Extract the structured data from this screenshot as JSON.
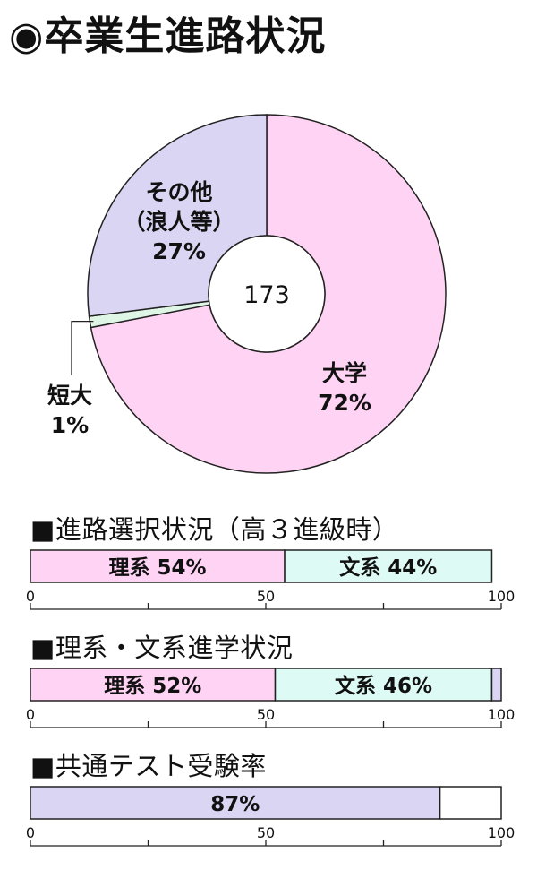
{
  "page": {
    "title": "◉卒業生進路状況"
  },
  "chart_data": [
    {
      "type": "pie",
      "center_label": "173",
      "slices": [
        {
          "label_lines": [
            "大学"
          ],
          "value": 72,
          "value_label": "72%",
          "color": "#ffd3f3"
        },
        {
          "label_lines": [
            "短大"
          ],
          "value": 1,
          "value_label": "1%",
          "color": "#dff5e5"
        },
        {
          "label_lines": [
            "その他",
            "（浪人等）"
          ],
          "value": 27,
          "value_label": "27%",
          "color": "#d9d5f2"
        }
      ]
    },
    {
      "type": "bar",
      "title": "■進路選択状況（高３進級時）",
      "orientation": "horizontal-stacked",
      "xlim": [
        0,
        100
      ],
      "ticks": [
        "0",
        "50",
        "100"
      ],
      "segments": [
        {
          "name": "理系",
          "value": 54,
          "label": "理系 54%",
          "color": "#ffd3f3"
        },
        {
          "name": "文系",
          "value": 44,
          "label": "文系 44%",
          "color": "#ddfaf4"
        }
      ]
    },
    {
      "type": "bar",
      "title": "■理系・文系進学状況",
      "orientation": "horizontal-stacked",
      "xlim": [
        0,
        100
      ],
      "ticks": [
        "0",
        "50",
        "100"
      ],
      "segments": [
        {
          "name": "理系",
          "value": 52,
          "label": "理系 52%",
          "color": "#ffd3f3"
        },
        {
          "name": "文系",
          "value": 46,
          "label": "文系 46%",
          "color": "#ddfaf4"
        },
        {
          "name": "",
          "value": 2,
          "label": "",
          "color": "#d9d5f2"
        }
      ]
    },
    {
      "type": "bar",
      "title": "■共通テスト受験率",
      "orientation": "horizontal-stacked",
      "xlim": [
        0,
        100
      ],
      "ticks": [
        "0",
        "50",
        "100"
      ],
      "segments": [
        {
          "name": "受験",
          "value": 87,
          "label": "87%",
          "color": "#d9d5f2"
        },
        {
          "name": "",
          "value": 13,
          "label": "",
          "color": "#ffffff"
        }
      ]
    }
  ]
}
